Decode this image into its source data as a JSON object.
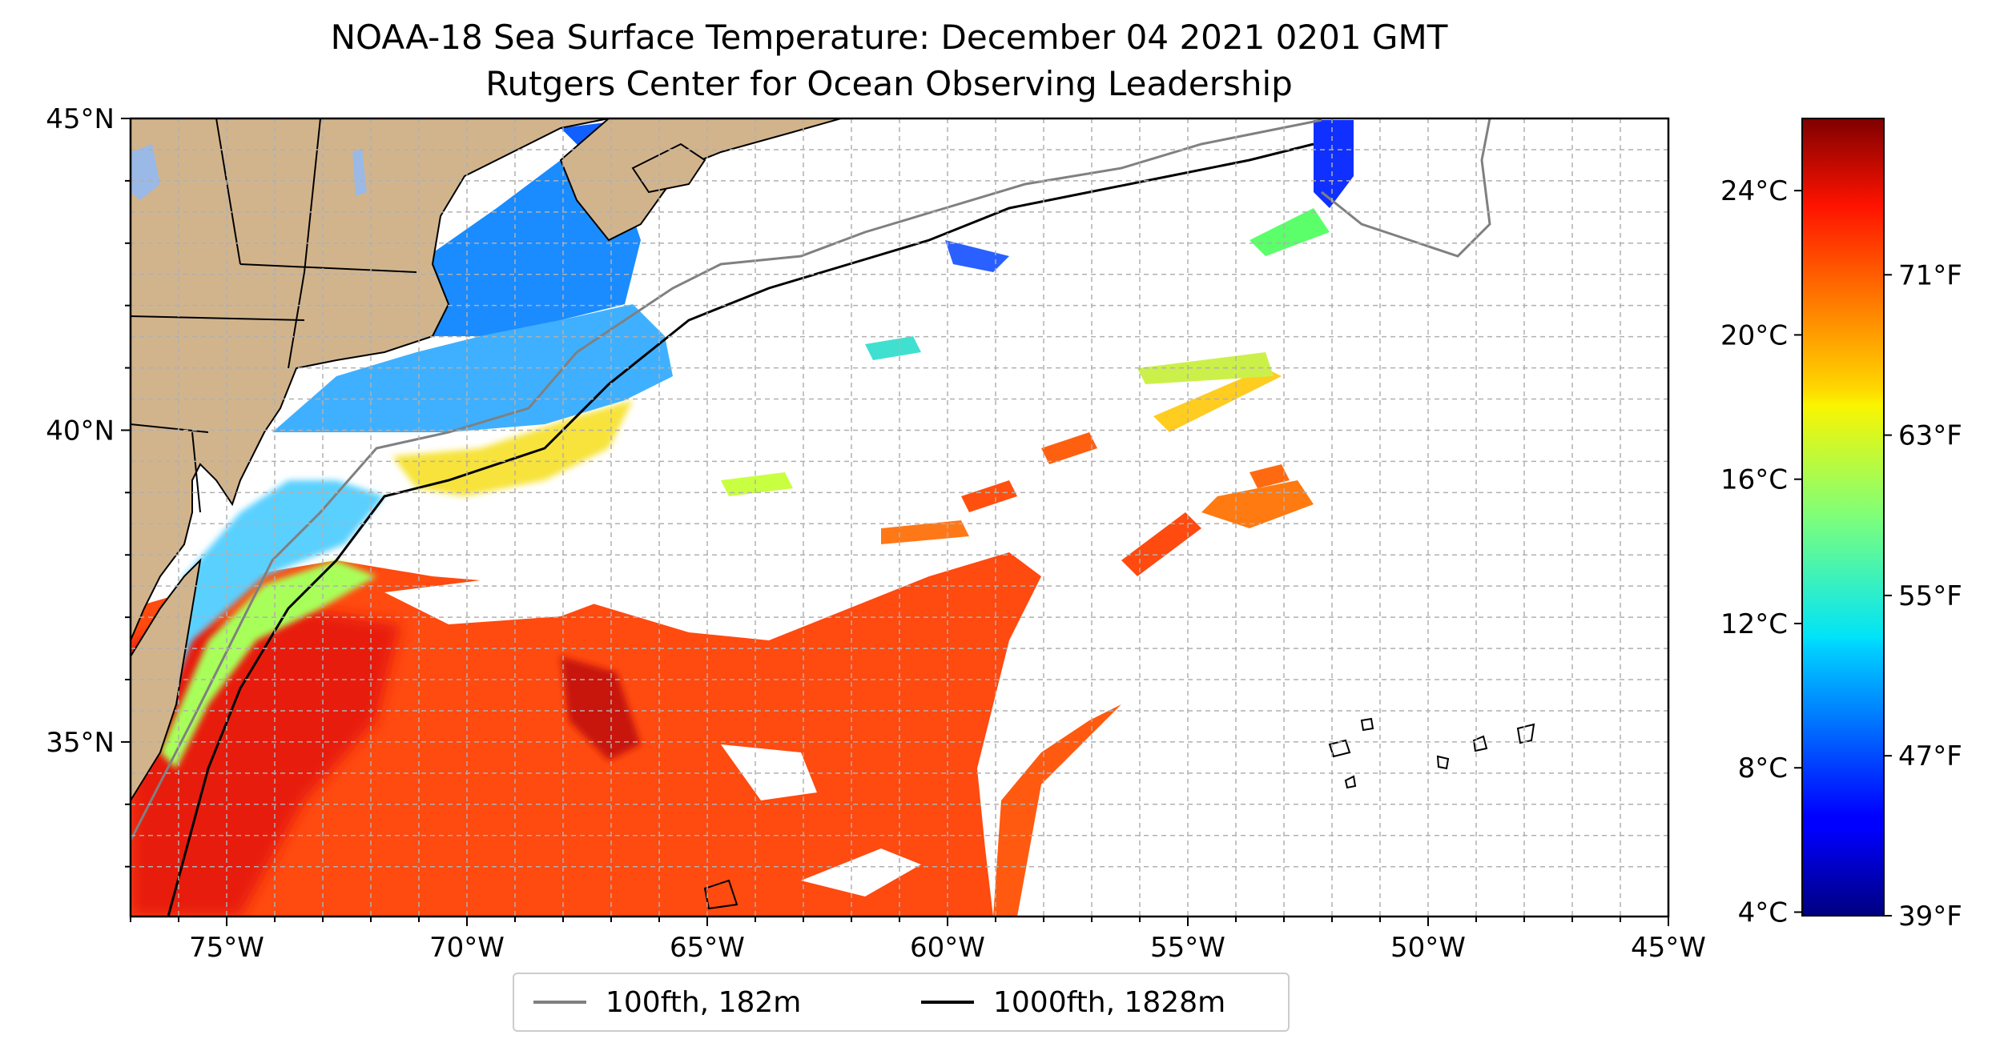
{
  "title": {
    "line1": "NOAA-18 Sea Surface Temperature: December 04 2021 0201 GMT",
    "line2": "Rutgers Center for Ocean Observing Leadership"
  },
  "map": {
    "lon_ticks": [
      "75°W",
      "70°W",
      "65°W",
      "60°W",
      "55°W",
      "50°W",
      "45°W"
    ],
    "lat_ticks": [
      "45°N",
      "40°N",
      "35°N"
    ],
    "extent": {
      "lon": [
        -77,
        -45
      ],
      "lat": [
        32.2,
        45
      ]
    }
  },
  "colorbar": {
    "celsius_ticks": [
      "24°C",
      "20°C",
      "16°C",
      "12°C",
      "8°C",
      "4°C"
    ],
    "fahrenheit_ticks": [
      "71°F",
      "63°F",
      "55°F",
      "47°F",
      "39°F"
    ],
    "colormap": "jet",
    "range_c": [
      3.9,
      26
    ]
  },
  "legend": {
    "items": [
      {
        "label": "100fth, 182m",
        "color": "#808080"
      },
      {
        "label": "1000fth, 1828m",
        "color": "#000000"
      }
    ]
  },
  "colors": {
    "land": "#d2b48c",
    "lakes": "#9ab9e6",
    "coastline": "#000000",
    "grid": "#b0b0b0"
  }
}
